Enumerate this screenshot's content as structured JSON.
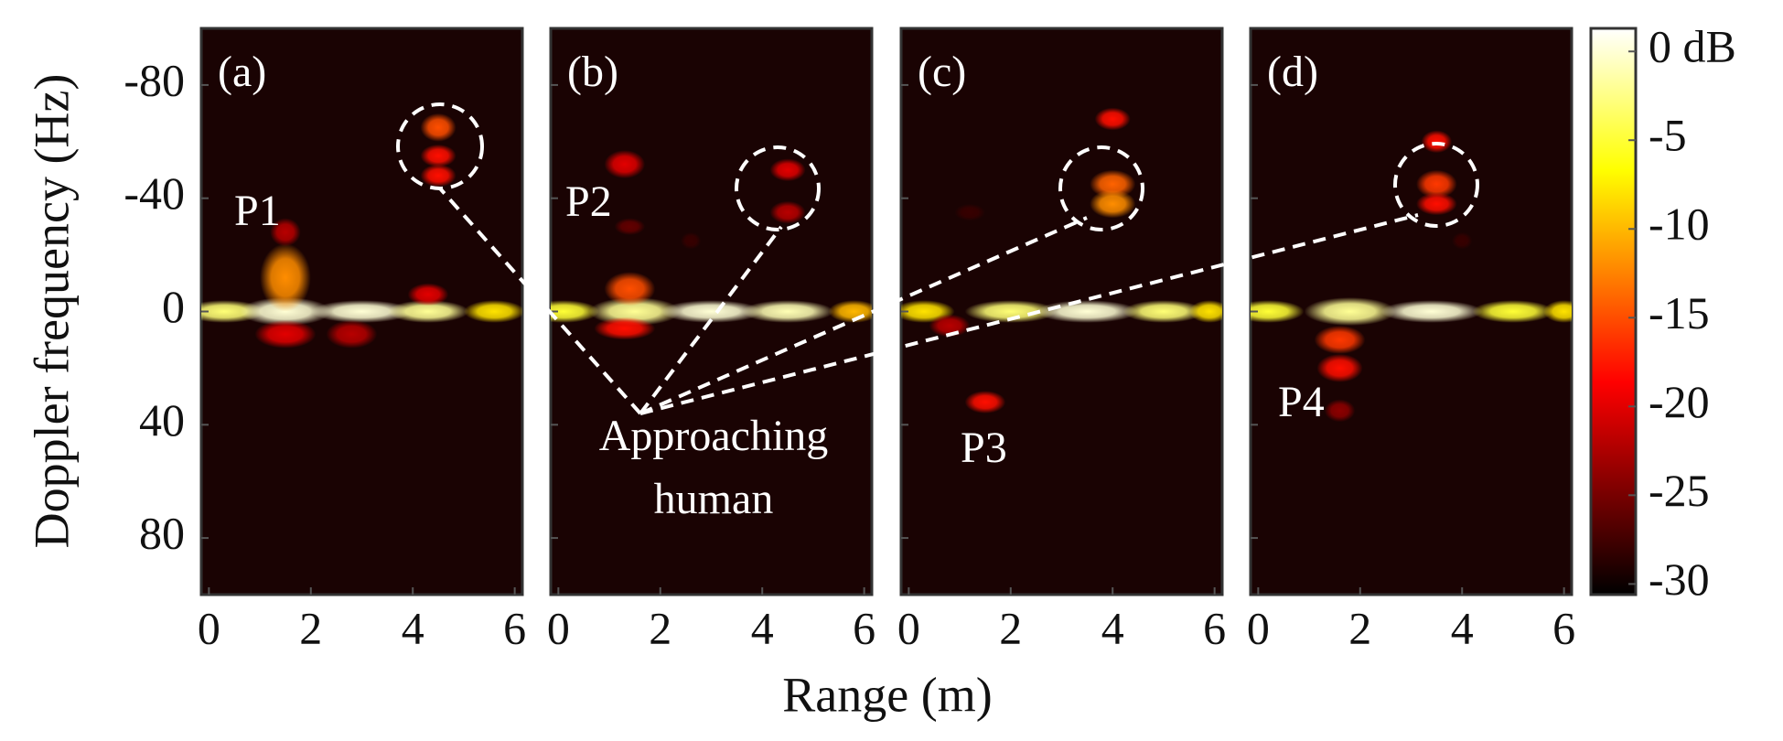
{
  "chart_data": {
    "type": "heatmap",
    "xlabel": "Range (m)",
    "ylabel": "Doppler frequency (Hz)",
    "xlim": [
      -0.15,
      6.15
    ],
    "xticks": [
      0,
      2,
      4,
      6
    ],
    "ylim": [
      -100,
      100
    ],
    "yticks": [
      -80,
      -40,
      0,
      40,
      80
    ],
    "y_inverted": true,
    "colormap": "hot",
    "colorbar": {
      "lim": [
        -30.6,
        1.3
      ],
      "ticks": [
        {
          "value": 0,
          "label": "0 dB"
        },
        -5,
        -10,
        -15,
        -20,
        -25,
        -30
      ]
    },
    "annotation_text": [
      "Approaching",
      "human"
    ],
    "panels": [
      {
        "label": "(a)",
        "annotation": "P1",
        "blobs": [
          {
            "x": 0.3,
            "y": 0,
            "db": -3,
            "rx": 0.8,
            "ry": 4
          },
          {
            "x": 1.5,
            "y": 0,
            "db": 0,
            "rx": 0.9,
            "ry": 5
          },
          {
            "x": 3.0,
            "y": 0,
            "db": 0,
            "rx": 1.0,
            "ry": 4
          },
          {
            "x": 4.3,
            "y": 0,
            "db": -2,
            "rx": 0.8,
            "ry": 4
          },
          {
            "x": 5.6,
            "y": 0,
            "db": -8,
            "rx": 0.6,
            "ry": 4
          },
          {
            "x": 1.5,
            "y": -12,
            "db": -12,
            "rx": 0.5,
            "ry": 12
          },
          {
            "x": 1.5,
            "y": -28,
            "db": -22,
            "rx": 0.3,
            "ry": 5
          },
          {
            "x": 1.5,
            "y": 8,
            "db": -20,
            "rx": 0.6,
            "ry": 5
          },
          {
            "x": 2.8,
            "y": 8,
            "db": -22,
            "rx": 0.5,
            "ry": 5
          },
          {
            "x": 4.3,
            "y": -6,
            "db": -20,
            "rx": 0.4,
            "ry": 4
          },
          {
            "x": 4.5,
            "y": -65,
            "db": -15,
            "rx": 0.35,
            "ry": 5
          },
          {
            "x": 4.5,
            "y": -55,
            "db": -18,
            "rx": 0.35,
            "ry": 4
          },
          {
            "x": 4.5,
            "y": -48,
            "db": -18,
            "rx": 0.35,
            "ry": 4
          }
        ]
      },
      {
        "label": "(b)",
        "annotation": "P2",
        "blobs": [
          {
            "x": 0.1,
            "y": 0,
            "db": -5,
            "rx": 0.7,
            "ry": 4
          },
          {
            "x": 1.5,
            "y": 0,
            "db": -2,
            "rx": 0.9,
            "ry": 5
          },
          {
            "x": 3.0,
            "y": 0,
            "db": 0,
            "rx": 1.0,
            "ry": 4
          },
          {
            "x": 4.5,
            "y": 0,
            "db": -1,
            "rx": 0.9,
            "ry": 4
          },
          {
            "x": 5.8,
            "y": 0,
            "db": -10,
            "rx": 0.5,
            "ry": 4
          },
          {
            "x": 1.3,
            "y": -52,
            "db": -20,
            "rx": 0.4,
            "ry": 5
          },
          {
            "x": 1.4,
            "y": -8,
            "db": -15,
            "rx": 0.5,
            "ry": 6
          },
          {
            "x": 1.4,
            "y": -30,
            "db": -26,
            "rx": 0.3,
            "ry": 3
          },
          {
            "x": 1.3,
            "y": 6,
            "db": -18,
            "rx": 0.6,
            "ry": 4
          },
          {
            "x": 2.6,
            "y": -25,
            "db": -28,
            "rx": 0.2,
            "ry": 3
          },
          {
            "x": 4.5,
            "y": -50,
            "db": -20,
            "rx": 0.35,
            "ry": 4
          },
          {
            "x": 4.5,
            "y": -35,
            "db": -22,
            "rx": 0.35,
            "ry": 4
          }
        ]
      },
      {
        "label": "(c)",
        "annotation": "P3",
        "blobs": [
          {
            "x": 0.3,
            "y": 0,
            "db": -8,
            "rx": 0.6,
            "ry": 4
          },
          {
            "x": 2.0,
            "y": 0,
            "db": -3,
            "rx": 0.9,
            "ry": 4
          },
          {
            "x": 3.5,
            "y": 0,
            "db": 0,
            "rx": 1.0,
            "ry": 4
          },
          {
            "x": 5.0,
            "y": 0,
            "db": -3,
            "rx": 0.8,
            "ry": 4
          },
          {
            "x": 5.9,
            "y": 0,
            "db": -8,
            "rx": 0.4,
            "ry": 4
          },
          {
            "x": 0.8,
            "y": 5,
            "db": -22,
            "rx": 0.4,
            "ry": 4
          },
          {
            "x": 1.2,
            "y": -35,
            "db": -28,
            "rx": 0.3,
            "ry": 3
          },
          {
            "x": 4.0,
            "y": -68,
            "db": -18,
            "rx": 0.35,
            "ry": 4
          },
          {
            "x": 4.0,
            "y": -45,
            "db": -14,
            "rx": 0.45,
            "ry": 5
          },
          {
            "x": 4.0,
            "y": -38,
            "db": -12,
            "rx": 0.45,
            "ry": 5
          },
          {
            "x": 1.5,
            "y": 32,
            "db": -18,
            "rx": 0.4,
            "ry": 4
          }
        ]
      },
      {
        "label": "(d)",
        "annotation": "P4",
        "blobs": [
          {
            "x": 0.2,
            "y": 0,
            "db": -5,
            "rx": 0.7,
            "ry": 4
          },
          {
            "x": 1.8,
            "y": 0,
            "db": -2,
            "rx": 0.9,
            "ry": 5
          },
          {
            "x": 3.4,
            "y": 0,
            "db": 0,
            "rx": 1.0,
            "ry": 4
          },
          {
            "x": 5.0,
            "y": 0,
            "db": -5,
            "rx": 0.8,
            "ry": 4
          },
          {
            "x": 6.0,
            "y": 0,
            "db": -8,
            "rx": 0.4,
            "ry": 4
          },
          {
            "x": 1.6,
            "y": 10,
            "db": -16,
            "rx": 0.5,
            "ry": 5
          },
          {
            "x": 1.6,
            "y": 20,
            "db": -18,
            "rx": 0.45,
            "ry": 5
          },
          {
            "x": 1.6,
            "y": 35,
            "db": -24,
            "rx": 0.3,
            "ry": 4
          },
          {
            "x": 3.5,
            "y": -60,
            "db": -18,
            "rx": 0.3,
            "ry": 4
          },
          {
            "x": 3.5,
            "y": -45,
            "db": -16,
            "rx": 0.4,
            "ry": 5
          },
          {
            "x": 3.5,
            "y": -38,
            "db": -18,
            "rx": 0.4,
            "ry": 4
          },
          {
            "x": 4.0,
            "y": -25,
            "db": -28,
            "rx": 0.2,
            "ry": 3
          }
        ]
      }
    ]
  }
}
